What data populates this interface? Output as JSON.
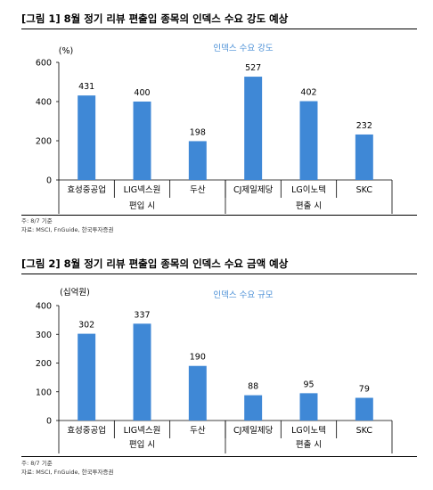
{
  "figures": [
    {
      "title": "[그림 1] 8월 정기 리뷰 편출입 종목의 인덱스 수요 강도 예상",
      "note": "주: 8/7 기준",
      "source": "자료: MSCI, FnGuide, 한국투자증권",
      "groups": [
        "편입 시",
        "편출 시"
      ]
    },
    {
      "title": "[그림 2] 8월 정기 리뷰 편출입 종목의 인덱스 수요 금액 예상",
      "note": "주: 8/7 기준",
      "source": "자료: MSCI, FnGuide, 한국투자증권",
      "groups": [
        "편입 시",
        "편출 시"
      ]
    }
  ],
  "chart_data": [
    {
      "type": "bar",
      "categories": [
        "효성중공업",
        "LIG넥스원",
        "두산",
        "CJ제일제당",
        "LG이노텍",
        "SKC"
      ],
      "series": [
        {
          "name": "인덱스 수요 강도",
          "values": [
            431,
            400,
            198,
            527,
            402,
            232
          ]
        }
      ],
      "ylabel": "(%)",
      "ylim": [
        0,
        600
      ],
      "yticks": [
        0,
        200,
        400,
        600
      ],
      "bar_color": "#3f88d6",
      "legend_color": "#4a8fd6",
      "legend": "top-center",
      "grid": false
    },
    {
      "type": "bar",
      "categories": [
        "효성중공업",
        "LIG넥스원",
        "두산",
        "CJ제일제당",
        "LG이노텍",
        "SKC"
      ],
      "series": [
        {
          "name": "인덱스 수요 규모",
          "values": [
            302,
            337,
            190,
            88,
            95,
            79
          ]
        }
      ],
      "ylabel": "(십억원)",
      "ylim": [
        0,
        400
      ],
      "yticks": [
        0,
        100,
        200,
        300,
        400
      ],
      "bar_color": "#3f88d6",
      "legend_color": "#4a8fd6",
      "legend": "top-center",
      "grid": false
    }
  ]
}
